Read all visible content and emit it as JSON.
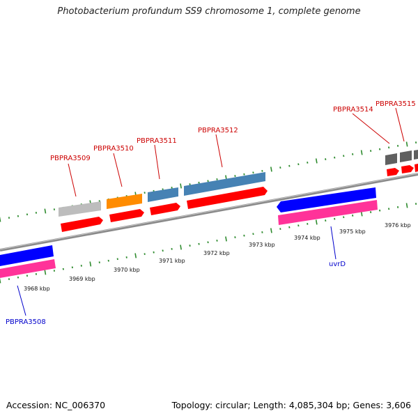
{
  "title": "Photobacterium profundum SS9 chromosome 1, complete genome",
  "footer": {
    "accession": "Accession: NC_006370",
    "summary": "Topology: circular; Length: 4,085,304 bp; Genes: 3,606"
  },
  "colors": {
    "backbone": "#8a8a8a",
    "tick": "#2e8b2e",
    "forward_cds": "#ff0000",
    "reverse_cds": "#ff3399",
    "forward_label": "#cc0000",
    "reverse_label": "#0000cc"
  },
  "scale": {
    "tick_labels": [
      "3968 kbp",
      "3969 kbp",
      "3970 kbp",
      "3971 kbp",
      "3972 kbp",
      "3973 kbp",
      "3974 kbp",
      "3975 kbp",
      "3976 kbp"
    ]
  },
  "gene_labels": [
    {
      "text": "PBPRA3508",
      "strand": "reverse"
    },
    {
      "text": "PBPRA3509",
      "strand": "forward"
    },
    {
      "text": "PBPRA3510",
      "strand": "forward"
    },
    {
      "text": "PBPRA3511",
      "strand": "forward"
    },
    {
      "text": "PBPRA3512",
      "strand": "forward"
    },
    {
      "text": "uvrD",
      "strand": "reverse"
    },
    {
      "text": "PBPRA3514",
      "strand": "forward"
    },
    {
      "text": "PBPRA3515",
      "strand": "forward"
    }
  ]
}
